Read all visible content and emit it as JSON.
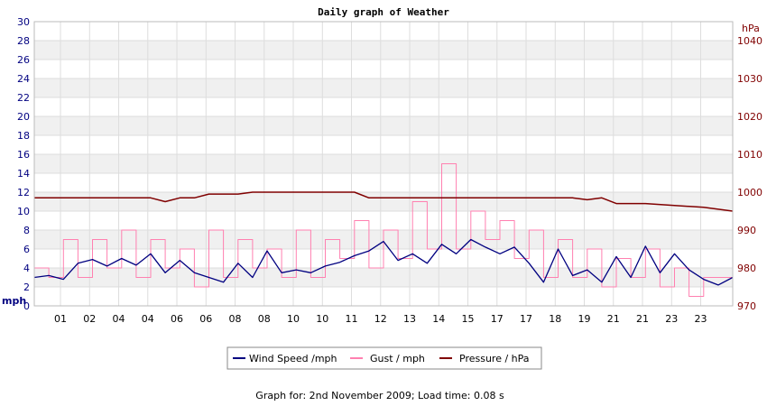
{
  "chart_data": {
    "type": "line",
    "title": "Daily graph of Weather",
    "footer": "Graph for: 2nd November 2009; Load time: 0.08 s",
    "y_left": {
      "label": "mph",
      "range": [
        0,
        30
      ],
      "ticks": [
        "0",
        "2",
        "4",
        "6",
        "8",
        "10",
        "12",
        "14",
        "16",
        "18",
        "20",
        "22",
        "24",
        "26",
        "28",
        "30"
      ]
    },
    "y_right": {
      "label": "hPa",
      "range": [
        970,
        1045
      ],
      "ticks": [
        "970",
        "980",
        "990",
        "1000",
        "1010",
        "1020",
        "1030",
        "1040"
      ]
    },
    "x_range": [
      0,
      24
    ],
    "x_ticks": [
      {
        "h": 0.9,
        "label": "01"
      },
      {
        "h": 1.9,
        "label": "02"
      },
      {
        "h": 2.9,
        "label": "04"
      },
      {
        "h": 3.9,
        "label": "04"
      },
      {
        "h": 4.9,
        "label": "06"
      },
      {
        "h": 5.9,
        "label": "06"
      },
      {
        "h": 6.9,
        "label": "08"
      },
      {
        "h": 7.9,
        "label": "08"
      },
      {
        "h": 8.9,
        "label": "10"
      },
      {
        "h": 9.9,
        "label": "10"
      },
      {
        "h": 10.9,
        "label": "11"
      },
      {
        "h": 11.9,
        "label": "12"
      },
      {
        "h": 12.9,
        "label": "13"
      },
      {
        "h": 13.9,
        "label": "14"
      },
      {
        "h": 14.9,
        "label": "15"
      },
      {
        "h": 15.9,
        "label": "17"
      },
      {
        "h": 16.9,
        "label": "17"
      },
      {
        "h": 17.9,
        "label": "18"
      },
      {
        "h": 18.9,
        "label": "19"
      },
      {
        "h": 19.9,
        "label": "21"
      },
      {
        "h": 20.9,
        "label": "21"
      },
      {
        "h": 21.9,
        "label": "23"
      },
      {
        "h": 22.9,
        "label": "23"
      }
    ],
    "grid": true,
    "legend_position": "bottom",
    "colors": {
      "wind": "#000080",
      "gust": "#ff80b0",
      "pressure": "#800000",
      "grid": "#dddddd",
      "band": "#f0f0f0"
    },
    "series": [
      {
        "name": "Wind Speed /mph",
        "axis": "left",
        "x": [
          0,
          0.5,
          1,
          1.5,
          2,
          2.5,
          3,
          3.5,
          4,
          4.5,
          5,
          5.5,
          6,
          6.5,
          7,
          7.5,
          8,
          8.5,
          9,
          9.5,
          10,
          10.5,
          11,
          11.5,
          12,
          12.5,
          13,
          13.5,
          14,
          14.5,
          15,
          15.5,
          16,
          16.5,
          17,
          17.5,
          18,
          18.5,
          19,
          19.5,
          20,
          20.5,
          21,
          21.5,
          22,
          22.5,
          23,
          23.5,
          24
        ],
        "values": [
          3.0,
          3.2,
          2.8,
          4.5,
          4.9,
          4.2,
          5.0,
          4.3,
          5.5,
          3.5,
          4.8,
          3.5,
          3.0,
          2.5,
          4.5,
          3.0,
          5.8,
          3.5,
          3.8,
          3.5,
          4.2,
          4.6,
          5.3,
          5.8,
          6.8,
          4.8,
          5.5,
          4.5,
          6.5,
          5.5,
          7.0,
          6.2,
          5.5,
          6.2,
          4.5,
          2.5,
          6.0,
          3.2,
          3.8,
          2.5,
          5.2,
          3.0,
          6.3,
          3.5,
          5.5,
          3.8,
          2.8,
          2.2,
          3.0
        ]
      },
      {
        "name": "Gust / mph",
        "axis": "left",
        "x": [
          0,
          0.5,
          1,
          1.5,
          2,
          2.5,
          3,
          3.5,
          4,
          4.5,
          5,
          5.5,
          6,
          6.5,
          7,
          7.5,
          8,
          8.5,
          9,
          9.5,
          10,
          10.5,
          11,
          11.5,
          12,
          12.5,
          13,
          13.5,
          14,
          14.5,
          15,
          15.5,
          16,
          16.5,
          17,
          17.5,
          18,
          18.5,
          19,
          19.5,
          20,
          20.5,
          21,
          21.5,
          22,
          22.5,
          23,
          23.5,
          24
        ],
        "values": [
          4,
          3,
          7,
          3,
          7,
          4,
          8,
          3,
          7,
          4,
          6,
          2,
          8,
          3,
          7,
          4,
          6,
          3,
          8,
          3,
          7,
          5,
          9,
          4,
          8,
          5,
          11,
          6,
          15,
          6,
          10,
          7,
          9,
          5,
          8,
          3,
          7,
          3,
          6,
          2,
          5,
          3,
          6,
          2,
          4,
          1,
          3,
          3,
          3
        ]
      },
      {
        "name": "Pressure / hPa",
        "axis": "right",
        "x": [
          0,
          1,
          2,
          3,
          4,
          4.5,
          5,
          5.5,
          6,
          6.5,
          7,
          7.5,
          8,
          8.5,
          9,
          9.5,
          10,
          10.5,
          11,
          11.5,
          12,
          13,
          14,
          15,
          16,
          17,
          18,
          18.5,
          19,
          19.5,
          20,
          21,
          22,
          23,
          24
        ],
        "values": [
          998.5,
          998.5,
          998.5,
          998.5,
          998.5,
          997.5,
          998.5,
          998.5,
          999.5,
          999.5,
          999.5,
          1000.0,
          1000.0,
          1000.0,
          1000.0,
          1000.0,
          1000.0,
          1000.0,
          1000.0,
          998.5,
          998.5,
          998.5,
          998.5,
          998.5,
          998.5,
          998.5,
          998.5,
          998.5,
          998.0,
          998.5,
          997.0,
          997.0,
          996.5,
          996.0,
          995.0
        ]
      }
    ]
  }
}
